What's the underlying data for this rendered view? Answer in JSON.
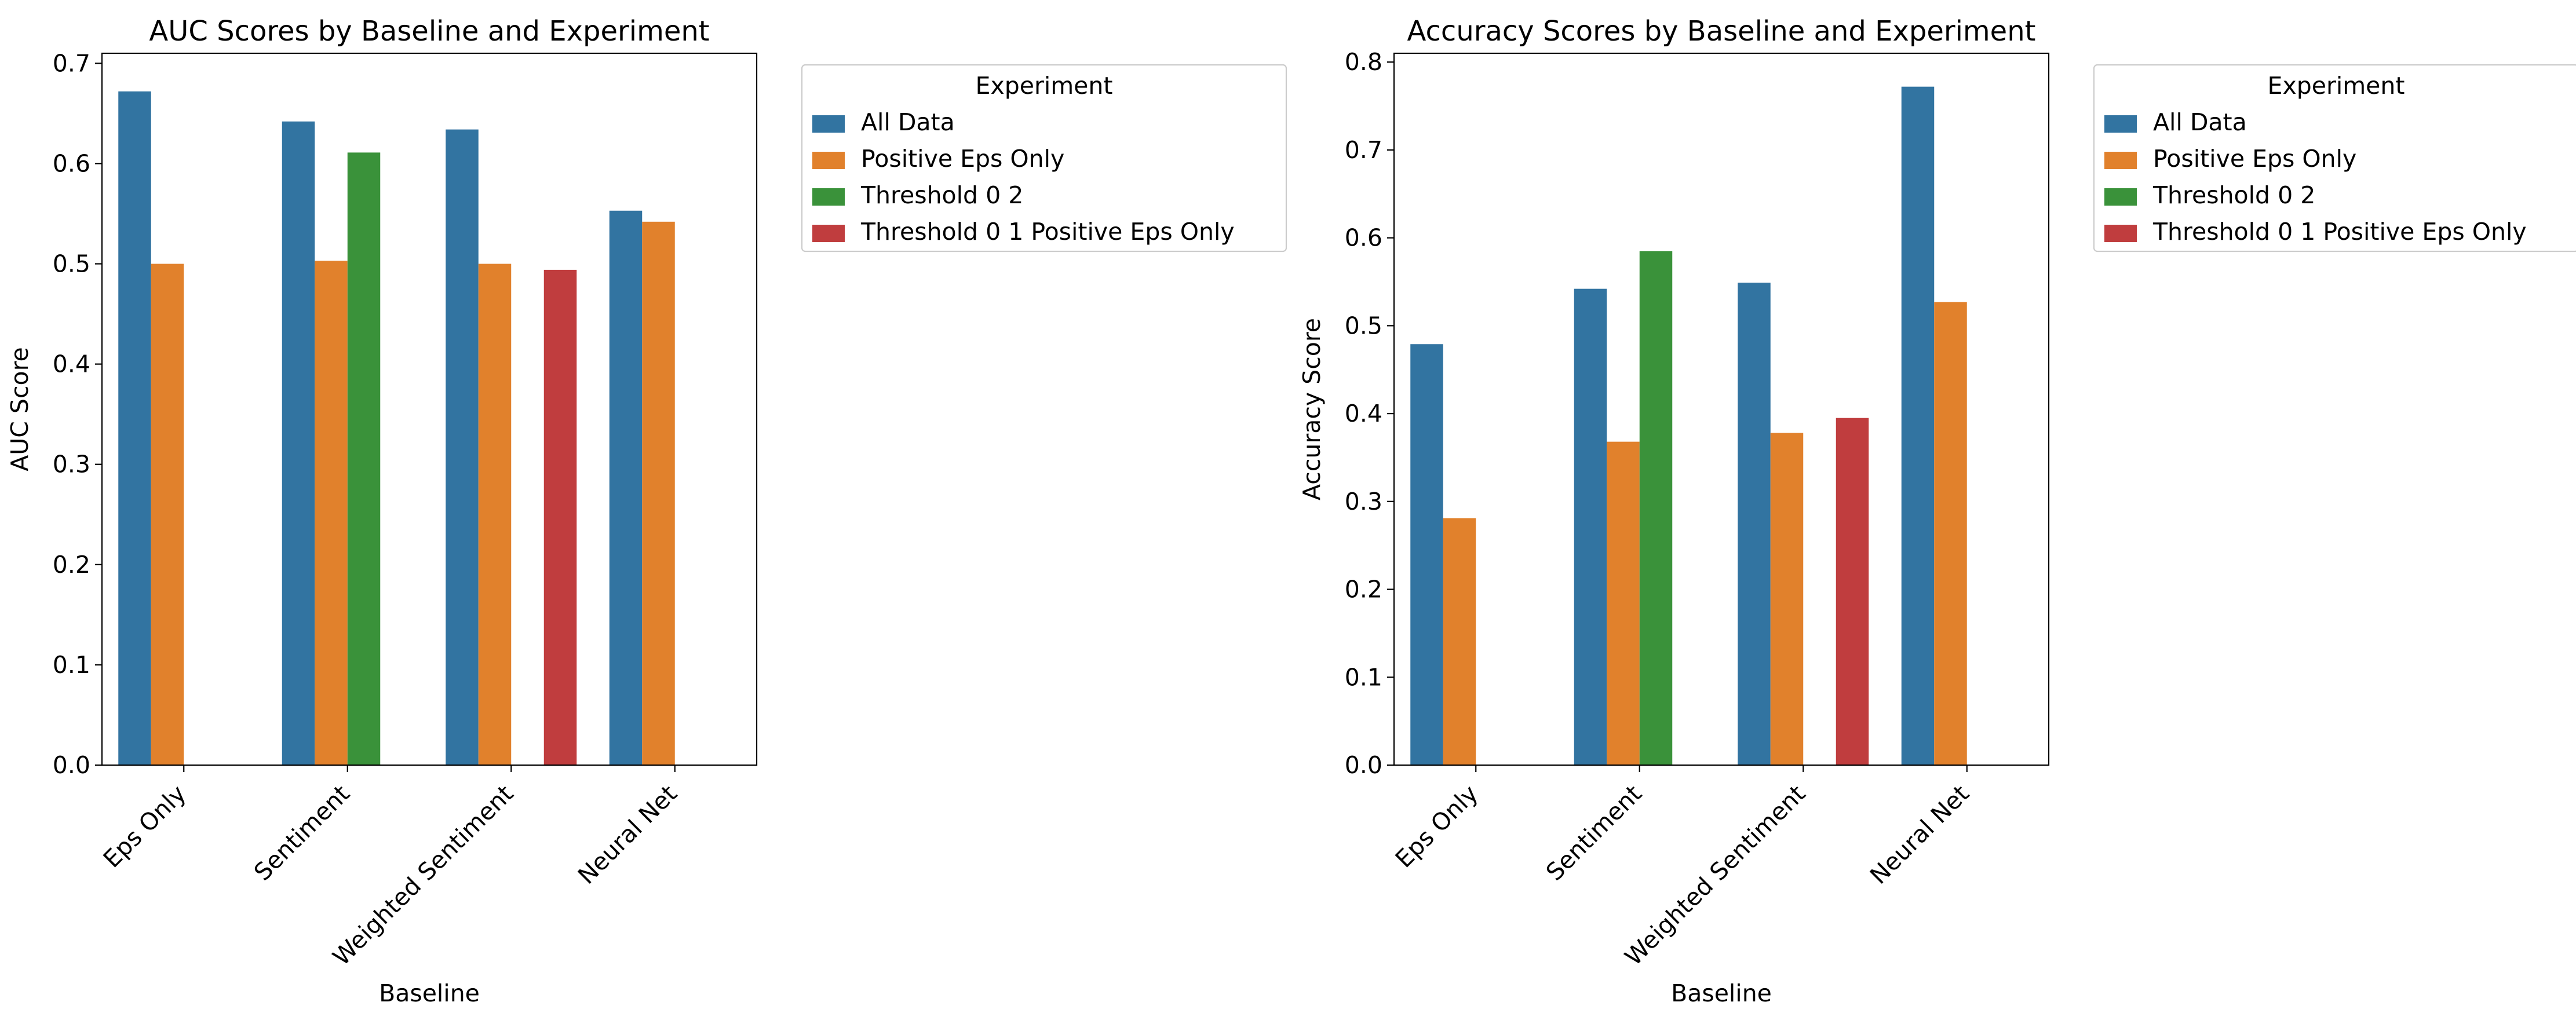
{
  "chart_data": [
    {
      "type": "bar",
      "title": "AUC Scores by Baseline and Experiment",
      "xlabel": "Baseline",
      "ylabel": "AUC Score",
      "ylim": [
        0,
        0.71
      ],
      "yticks": [
        "0.0",
        "0.1",
        "0.2",
        "0.3",
        "0.4",
        "0.5",
        "0.6",
        "0.7"
      ],
      "categories": [
        "Eps Only",
        "Sentiment",
        "Weighted Sentiment",
        "Neural Net"
      ],
      "legend": {
        "title": "Experiment",
        "placement": "outside-upper-right"
      },
      "grid": false,
      "series": [
        {
          "name": "All Data",
          "color": "#3274a1",
          "values": [
            0.672,
            0.642,
            0.634,
            0.553
          ]
        },
        {
          "name": "Positive Eps Only",
          "color": "#e1812c",
          "values": [
            0.5,
            0.503,
            0.5,
            0.542
          ]
        },
        {
          "name": "Threshold 0 2",
          "color": "#3a923a",
          "values": [
            null,
            0.611,
            null,
            null
          ]
        },
        {
          "name": "Threshold 0 1 Positive Eps Only",
          "color": "#c03d3e",
          "values": [
            null,
            null,
            0.494,
            null
          ]
        }
      ]
    },
    {
      "type": "bar",
      "title": "Accuracy Scores by Baseline and Experiment",
      "xlabel": "Baseline",
      "ylabel": "Accuracy Score",
      "ylim": [
        0,
        0.81
      ],
      "yticks": [
        "0.0",
        "0.1",
        "0.2",
        "0.3",
        "0.4",
        "0.5",
        "0.6",
        "0.7",
        "0.8"
      ],
      "categories": [
        "Eps Only",
        "Sentiment",
        "Weighted Sentiment",
        "Neural Net"
      ],
      "legend": {
        "title": "Experiment",
        "placement": "outside-upper-right"
      },
      "grid": false,
      "series": [
        {
          "name": "All Data",
          "color": "#3274a1",
          "values": [
            0.479,
            0.542,
            0.549,
            0.772
          ]
        },
        {
          "name": "Positive Eps Only",
          "color": "#e1812c",
          "values": [
            0.281,
            0.368,
            0.378,
            0.527
          ]
        },
        {
          "name": "Threshold 0 2",
          "color": "#3a923a",
          "values": [
            null,
            0.585,
            null,
            null
          ]
        },
        {
          "name": "Threshold 0 1 Positive Eps Only",
          "color": "#c03d3e",
          "values": [
            null,
            null,
            0.395,
            null
          ]
        }
      ]
    }
  ]
}
